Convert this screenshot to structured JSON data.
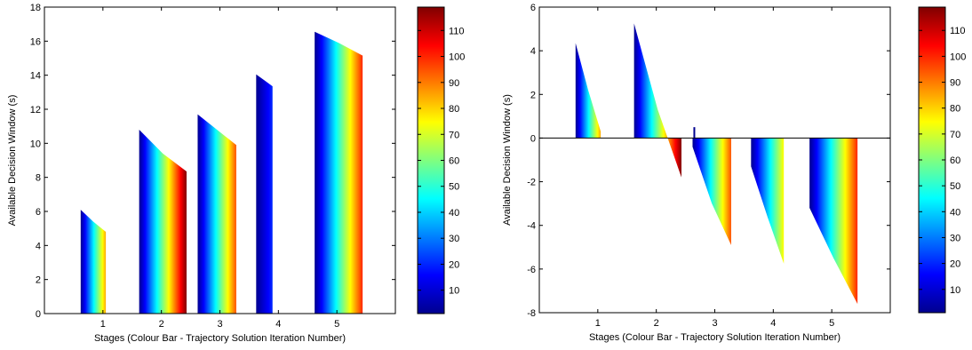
{
  "colormap": [
    "#00008f",
    "#0000ff",
    "#00ffff",
    "#ffff00",
    "#ff0000",
    "#800000"
  ],
  "chart_data": [
    {
      "type": "area",
      "title": "",
      "xlabel": "Stages (Colour Bar - Trajectory Solution Iteration Number)",
      "ylabel": "Available Decision Window (s)",
      "xlim": [
        0,
        6
      ],
      "ylim": [
        0,
        18
      ],
      "yticks": [
        0,
        2,
        4,
        6,
        8,
        10,
        12,
        14,
        16,
        18
      ],
      "xticks": [
        1,
        2,
        3,
        4,
        5
      ],
      "grid": false,
      "colorbar": {
        "label": "Trajectory Solution Iteration Number",
        "ticks": [
          10,
          20,
          30,
          40,
          50,
          60,
          70,
          80,
          90,
          100,
          110
        ],
        "range": [
          1,
          119
        ]
      },
      "series": [
        {
          "stage": 1,
          "x_start": 0.62,
          "x_end": 1.05,
          "y_start": 6.1,
          "y_mid": 5.4,
          "y_end": 4.8,
          "iter_end": 85
        },
        {
          "stage": 2,
          "x_start": 1.62,
          "x_end": 2.43,
          "y_start": 10.8,
          "y_mid": 9.4,
          "y_end": 8.35,
          "iter_end": 119
        },
        {
          "stage": 3,
          "x_start": 2.62,
          "x_end": 3.28,
          "y_start": 11.7,
          "y_mid": 10.8,
          "y_end": 9.9,
          "iter_end": 95
        },
        {
          "stage": 4,
          "x_start": 3.62,
          "x_end": 3.9,
          "y_start": 14.05,
          "y_mid": 13.7,
          "y_end": 13.35,
          "iter_end": 20
        },
        {
          "stage": 5,
          "x_start": 4.62,
          "x_end": 5.44,
          "y_start": 16.55,
          "y_mid": 15.9,
          "y_end": 15.15,
          "iter_end": 100
        }
      ]
    },
    {
      "type": "area",
      "title": "",
      "xlabel": "Stages (Colour Bar - Trajectory Solution Iteration Number)",
      "ylabel": "Available Decision Window (s)",
      "xlim": [
        0,
        6
      ],
      "ylim": [
        -8,
        6
      ],
      "yticks": [
        -8,
        -6,
        -4,
        -2,
        0,
        2,
        4,
        6
      ],
      "xticks": [
        1,
        2,
        3,
        4,
        5
      ],
      "grid": false,
      "colorbar": {
        "label": "Trajectory Solution Iteration Number",
        "ticks": [
          10,
          20,
          30,
          40,
          50,
          60,
          70,
          80,
          90,
          100,
          110
        ],
        "range": [
          1,
          119
        ]
      },
      "series": [
        {
          "stage": 1,
          "x_start": 0.62,
          "x_end": 1.05,
          "y_start": 4.35,
          "y_mid": 2.2,
          "y_end": 0.3,
          "iter_end": 85
        },
        {
          "stage": 2,
          "x_start": 1.62,
          "x_end": 2.43,
          "y_start": 5.25,
          "y_mid": 1.3,
          "y_end": -1.8,
          "iter_end": 119
        },
        {
          "stage": 3,
          "x_start": 2.62,
          "x_end": 3.28,
          "y_start": -0.4,
          "y_mid": -3.0,
          "y_end": -4.9,
          "iter_end": 95
        },
        {
          "stage": 4,
          "x_start": 3.62,
          "x_end": 4.18,
          "y_start": -1.3,
          "y_mid": -3.6,
          "y_end": -5.75,
          "iter_end": 75
        },
        {
          "stage": 5,
          "x_start": 4.62,
          "x_end": 5.44,
          "y_start": -3.2,
          "y_mid": -5.5,
          "y_end": -7.6,
          "iter_end": 100
        }
      ],
      "extra_marks": [
        {
          "stage": 3,
          "x": 2.65,
          "y_top": 0.5,
          "y_bottom": 0
        }
      ]
    }
  ]
}
